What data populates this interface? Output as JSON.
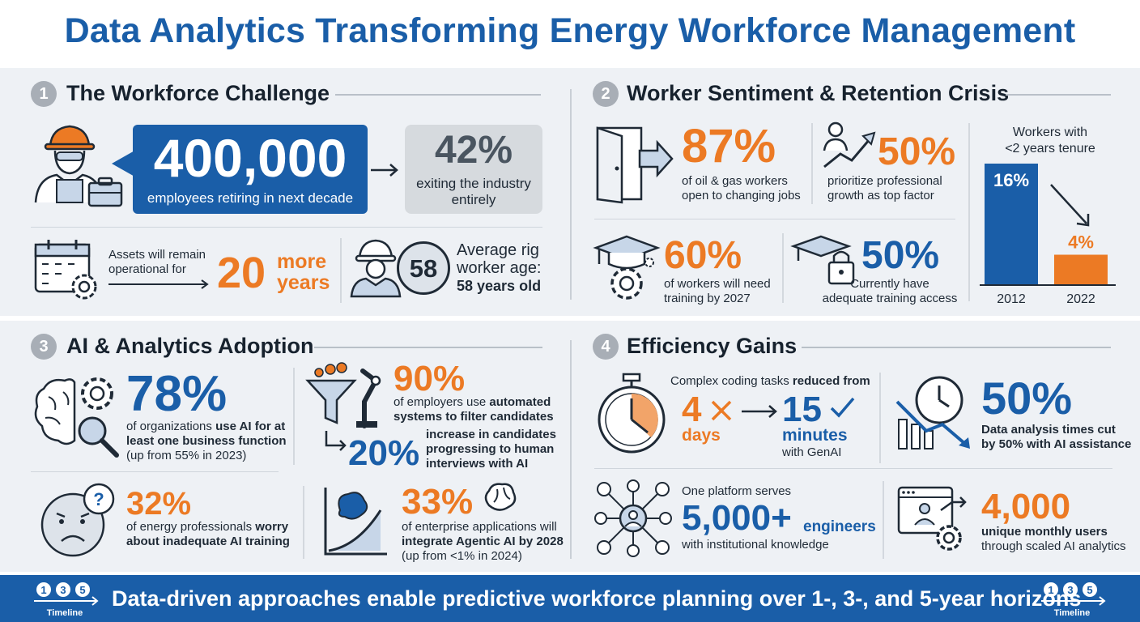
{
  "title": "Data Analytics Transforming Energy Workforce Management",
  "colors": {
    "blue": "#1a5ea8",
    "orange": "#ec7a24",
    "panel": "#eef1f5"
  },
  "s1": {
    "num": "1",
    "title": "The Workforce Challenge",
    "retiring_value": "400,000",
    "retiring_text": "employees retiring in next decade",
    "exit_value": "42%",
    "exit_text_1": "exiting the industry",
    "exit_text_2": "entirely",
    "assets_text_1": "Assets will remain",
    "assets_text_2": "operational for",
    "assets_value": "20",
    "assets_unit_1": "more",
    "assets_unit_2": "years",
    "age_value": "58",
    "age_text_1": "Average rig",
    "age_text_2": "worker age:",
    "age_text_3": "58 years old"
  },
  "s2": {
    "num": "2",
    "title": "Worker Sentiment & Retention Crisis",
    "open_value": "87%",
    "open_text_1": "of oil & gas workers",
    "open_text_2": "open to changing jobs",
    "growth_value": "50%",
    "growth_text_1": "prioritize professional",
    "growth_text_2": "growth as top factor",
    "training_value": "60%",
    "training_text_1": "of workers will need",
    "training_text_2": "training by 2027",
    "access_value": "50%",
    "access_text_1": "Currently have",
    "access_text_2": "adequate training access",
    "tenure_title_1": "Workers with",
    "tenure_title_2": "<2 years tenure"
  },
  "chart_data": {
    "type": "bar",
    "title": "Workers with <2 years tenure",
    "categories": [
      "2012",
      "2022"
    ],
    "values": [
      16,
      4
    ],
    "labels": [
      "16%",
      "4%"
    ],
    "colors": [
      "#1a5ea8",
      "#ec7a24"
    ],
    "ylim": [
      0,
      16
    ]
  },
  "s3": {
    "num": "3",
    "title": "AI & Analytics Adoption",
    "ai_value": "78%",
    "ai_text_1": "of organizations ",
    "ai_text_1b": "use AI for at",
    "ai_text_2": "least one business function",
    "ai_text_3": "(up from 55% in 2023)",
    "auto_value": "90%",
    "auto_text_1": "of employers use ",
    "auto_text_1b": "automated",
    "auto_text_2": "systems to filter candidates",
    "cand_value": "20%",
    "cand_text_1": "increase in candidates",
    "cand_text_2": "progressing to human",
    "cand_text_3": "interviews with AI",
    "worry_value": "32%",
    "worry_text_1": "of energy professionals ",
    "worry_text_1b": "worry",
    "worry_text_2": "about inadequate AI training",
    "agentic_value": "33%",
    "agentic_text_1": "of enterprise applications will",
    "agentic_text_2": "integrate Agentic AI by 2028",
    "agentic_text_3": "(up from <1% in 2024)"
  },
  "s4": {
    "num": "4",
    "title": "Efficiency Gains",
    "coding_text_1": "Complex coding tasks ",
    "coding_text_1b": "reduced from",
    "from_value": "4",
    "from_unit": "days",
    "to_value": "15",
    "to_unit": "minutes",
    "to_note": "with GenAI",
    "analysis_value": "50%",
    "analysis_text_1": "Data analysis times cut",
    "analysis_text_2": "by 50% with AI assistance",
    "platform_text_1": "One platform serves",
    "platform_value": "5,000+",
    "platform_unit": "engineers",
    "platform_text_2": "with institutional knowledge",
    "users_value": "4,000",
    "users_text_1": "unique monthly users",
    "users_text_2": "through scaled AI analytics"
  },
  "footer": {
    "text": "Data-driven approaches enable predictive workforce planning over 1-, 3-, and 5-year horizons",
    "timeline_label": "Timeline",
    "timeline_nums": [
      "1",
      "3",
      "5"
    ]
  }
}
